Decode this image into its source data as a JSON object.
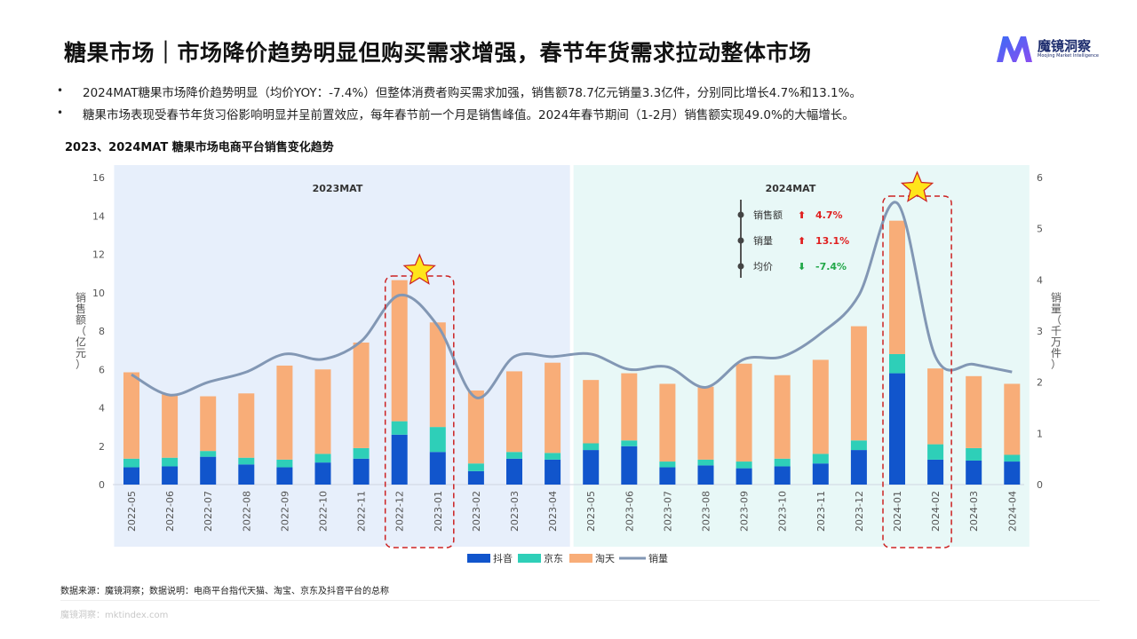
{
  "header": {
    "title": "糖果市场｜市场降价趋势明显但购买需求增强，春节年货需求拉动整体市场",
    "logo_name": "魔镜洞察",
    "logo_sub": "Moojing Market Intelligence"
  },
  "bullets": [
    "2024MAT糖果市场降价趋势明显（均价YOY：-7.4%）但整体消费者购买需求加强，销售额78.7亿元销量3.3亿件，分别同比增长4.7%和13.1%。",
    "糖果市场表现受春节年货习俗影响明显并呈前置效应，每年春节前一个月是销售峰值。2024年春节期间（1-2月）销售额实现49.0%的大幅增长。"
  ],
  "footer": {
    "source": "数据来源：魔镜洞察；数据说明：电商平台指代天猫、淘宝、京东及抖音平台的总称",
    "url": "魔镜洞察：mktindex.com"
  },
  "colors": {
    "douyin": "#1155cc",
    "jd": "#2ecfb8",
    "tmall": "#f8ad78",
    "volume_line": "#8297b4",
    "bg_2023": "#e7effb",
    "bg_2024": "#e8f8f7",
    "highlight": "#cc2222",
    "star_fill": "#ffe51a",
    "up": "#e02020",
    "down": "#23a84a"
  },
  "chart_data": {
    "type": "bar",
    "title": "2023、2024MAT 糖果市场电商平台销售变化趋势",
    "stacked": true,
    "categories": [
      "2022-05",
      "2022-06",
      "2022-07",
      "2022-08",
      "2022-09",
      "2022-10",
      "2022-11",
      "2022-12",
      "2023-01",
      "2023-02",
      "2023-03",
      "2023-04",
      "2023-05",
      "2023-06",
      "2023-07",
      "2023-08",
      "2023-09",
      "2023-10",
      "2023-11",
      "2023-12",
      "2024-01",
      "2024-02",
      "2024-03",
      "2024-04"
    ],
    "series": [
      {
        "name": "抖音",
        "type": "bar",
        "axis": "left",
        "values": [
          0.9,
          0.95,
          1.45,
          1.05,
          0.9,
          1.15,
          1.35,
          2.6,
          1.7,
          0.7,
          1.35,
          1.3,
          1.8,
          2.0,
          0.9,
          1.0,
          0.85,
          0.95,
          1.1,
          1.8,
          5.8,
          1.3,
          1.25,
          1.2
        ]
      },
      {
        "name": "京东",
        "type": "bar",
        "axis": "left",
        "values": [
          0.45,
          0.45,
          0.3,
          0.35,
          0.4,
          0.45,
          0.55,
          0.7,
          1.3,
          0.4,
          0.35,
          0.35,
          0.35,
          0.3,
          0.3,
          0.3,
          0.35,
          0.4,
          0.5,
          0.5,
          1.0,
          0.8,
          0.65,
          0.35
        ]
      },
      {
        "name": "淘天",
        "type": "bar",
        "axis": "left",
        "values": [
          4.5,
          3.3,
          2.85,
          3.35,
          4.9,
          4.4,
          5.5,
          7.35,
          5.45,
          3.8,
          4.2,
          4.7,
          3.3,
          3.5,
          4.05,
          3.8,
          5.1,
          4.35,
          4.9,
          5.95,
          6.95,
          3.95,
          3.75,
          3.7
        ]
      },
      {
        "name": "销量",
        "type": "line",
        "axis": "right",
        "values": [
          2.15,
          1.75,
          2.0,
          2.2,
          2.55,
          2.45,
          2.8,
          3.7,
          3.1,
          1.7,
          2.5,
          2.5,
          2.55,
          2.25,
          2.3,
          1.9,
          2.45,
          2.5,
          2.95,
          3.7,
          5.5,
          2.5,
          2.35,
          2.2
        ]
      }
    ],
    "ylabel": "销售额（亿元）",
    "ylabel_right": "销量（千万件）",
    "ylim": [
      0,
      16
    ],
    "ylim_right": [
      0,
      6
    ],
    "yticks": [
      0,
      2,
      4,
      6,
      8,
      10,
      12,
      14,
      16
    ],
    "yticks_right": [
      0,
      1,
      2,
      3,
      4,
      5,
      6
    ],
    "periods": [
      {
        "label": "2023MAT",
        "start": "2022-05",
        "end": "2023-04"
      },
      {
        "label": "2024MAT",
        "start": "2023-05",
        "end": "2024-04"
      }
    ],
    "highlights": [
      [
        "2022-12",
        "2023-01"
      ],
      [
        "2024-01",
        "2024-02"
      ]
    ],
    "stats": [
      {
        "label": "销售额",
        "arrow": "⬆",
        "value": "4.7%",
        "dir": "up"
      },
      {
        "label": "销量",
        "arrow": "⬆",
        "value": "13.1%",
        "dir": "up"
      },
      {
        "label": "均价",
        "arrow": "⬇",
        "value": "-7.4%",
        "dir": "down"
      }
    ],
    "legend_position": "bottom",
    "grid": false
  }
}
